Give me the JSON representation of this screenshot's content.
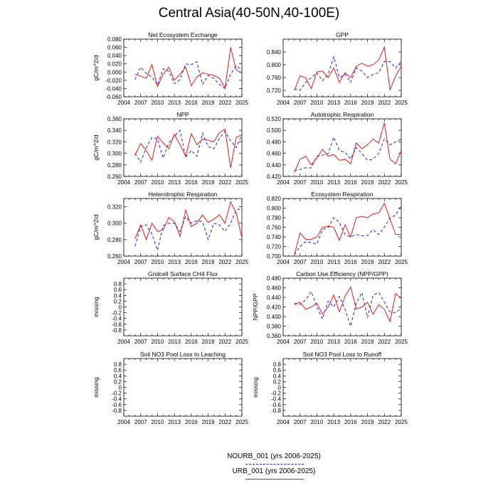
{
  "figure": {
    "title": "Central Asia(40-50N,40-100E)",
    "colors": {
      "nourb": "#1f1fdd",
      "urb": "#e81818"
    }
  },
  "legend": [
    {
      "label": "NOURB_001 (yrs 2006-2025)",
      "color": "#1f1fdd",
      "style": "dashed"
    },
    {
      "label": "URB_001 (yrs 2006-2025)",
      "color": "#e81818",
      "style": "solid"
    }
  ],
  "chart_data": [
    {
      "type": "line",
      "title": "Net Ecosystem Exchange",
      "ylabel": "gC/m^2/d",
      "ylim": [
        -0.06,
        0.08
      ],
      "yticks": [
        "-0.060",
        "-0.040",
        "-0.020",
        "0.000",
        "0.020",
        "0.040",
        "0.060",
        "0.080"
      ],
      "xticks": [
        "2004",
        "2007",
        "2010",
        "2013",
        "2016",
        "2019",
        "2022",
        "2025"
      ],
      "x": [
        2006,
        2007,
        2008,
        2009,
        2010,
        2011,
        2012,
        2013,
        2014,
        2015,
        2016,
        2017,
        2018,
        2019,
        2020,
        2021,
        2022,
        2023,
        2024,
        2025
      ],
      "series": [
        {
          "name": "NOURB_001",
          "values": [
            -0.018,
            0.012,
            -0.003,
            -0.012,
            -0.032,
            0.008,
            0.002,
            -0.028,
            -0.018,
            0.02,
            0.018,
            0.025,
            -0.03,
            -0.008,
            -0.015,
            -0.03,
            -0.04,
            -0.005,
            0.015,
            0.005
          ]
        },
        {
          "name": "URB_001",
          "values": [
            -0.005,
            -0.01,
            -0.015,
            0.018,
            -0.035,
            -0.005,
            0.012,
            -0.02,
            -0.005,
            0.012,
            -0.033,
            -0.012,
            -0.002,
            -0.005,
            -0.008,
            -0.015,
            -0.038,
            0.06,
            0.005,
            -0.002
          ]
        }
      ]
    },
    {
      "type": "line",
      "title": "GPP",
      "ylabel": "",
      "ylim": [
        0.7,
        0.88
      ],
      "yticks": [
        "0.720",
        "0.760",
        "0.800",
        "0.840"
      ],
      "xticks": [
        "2004",
        "2007",
        "2010",
        "2013",
        "2016",
        "2019",
        "2022",
        "2025"
      ],
      "x": [
        2006,
        2007,
        2008,
        2009,
        2010,
        2011,
        2012,
        2013,
        2014,
        2015,
        2016,
        2017,
        2018,
        2019,
        2020,
        2021,
        2022,
        2023,
        2024,
        2025
      ],
      "series": [
        {
          "name": "NOURB_001",
          "values": [
            0.725,
            0.72,
            0.745,
            0.76,
            0.775,
            0.75,
            0.77,
            0.825,
            0.76,
            0.77,
            0.745,
            0.79,
            0.78,
            0.76,
            0.77,
            0.775,
            0.81,
            0.81,
            0.79,
            0.81
          ]
        },
        {
          "name": "URB_001",
          "values": [
            0.72,
            0.765,
            0.76,
            0.725,
            0.778,
            0.78,
            0.76,
            0.79,
            0.745,
            0.775,
            0.76,
            0.795,
            0.805,
            0.795,
            0.8,
            0.815,
            0.855,
            0.722,
            0.765,
            0.795
          ]
        }
      ]
    },
    {
      "type": "line",
      "title": "NPP",
      "ylabel": "gC/m^2/d",
      "ylim": [
        0.26,
        0.36
      ],
      "yticks": [
        "0.260",
        "0.280",
        "0.300",
        "0.320",
        "0.340",
        "0.360"
      ],
      "xticks": [
        "2004",
        "2007",
        "2010",
        "2013",
        "2016",
        "2019",
        "2022",
        "2025"
      ],
      "x": [
        2006,
        2007,
        2008,
        2009,
        2010,
        2011,
        2012,
        2013,
        2014,
        2015,
        2016,
        2017,
        2018,
        2019,
        2020,
        2021,
        2022,
        2023,
        2024,
        2025
      ],
      "series": [
        {
          "name": "NOURB_001",
          "values": [
            0.3,
            0.285,
            0.31,
            0.328,
            0.325,
            0.292,
            0.318,
            0.33,
            0.34,
            0.293,
            0.305,
            0.295,
            0.335,
            0.312,
            0.308,
            0.326,
            0.338,
            0.322,
            0.31,
            0.333
          ]
        },
        {
          "name": "URB_001",
          "values": [
            0.297,
            0.317,
            0.305,
            0.288,
            0.33,
            0.318,
            0.308,
            0.333,
            0.315,
            0.295,
            0.334,
            0.315,
            0.325,
            0.323,
            0.32,
            0.336,
            0.342,
            0.275,
            0.328,
            0.332
          ]
        }
      ]
    },
    {
      "type": "line",
      "title": "Autotrophic Respiration",
      "ylabel": "",
      "ylim": [
        0.42,
        0.52
      ],
      "yticks": [
        "0.420",
        "0.440",
        "0.460",
        "0.480",
        "0.500",
        "0.520"
      ],
      "xticks": [
        "2004",
        "2007",
        "2010",
        "2013",
        "2016",
        "2019",
        "2022",
        "2025"
      ],
      "x": [
        2006,
        2007,
        2008,
        2009,
        2010,
        2011,
        2012,
        2013,
        2014,
        2015,
        2016,
        2017,
        2018,
        2019,
        2020,
        2021,
        2022,
        2023,
        2024,
        2025
      ],
      "series": [
        {
          "name": "NOURB_001",
          "values": [
            0.43,
            0.432,
            0.435,
            0.435,
            0.455,
            0.457,
            0.46,
            0.488,
            0.465,
            0.462,
            0.45,
            0.47,
            0.46,
            0.448,
            0.45,
            0.46,
            0.485,
            0.475,
            0.48,
            0.485
          ]
        },
        {
          "name": "URB_001",
          "values": [
            0.427,
            0.45,
            0.455,
            0.44,
            0.452,
            0.467,
            0.455,
            0.458,
            0.448,
            0.45,
            0.442,
            0.478,
            0.468,
            0.475,
            0.485,
            0.478,
            0.513,
            0.45,
            0.442,
            0.465
          ]
        }
      ]
    },
    {
      "type": "line",
      "title": "Heterotrophic Respiration",
      "ylabel": "gC/m^2/d",
      "ylim": [
        0.26,
        0.33
      ],
      "yticks": [
        "0.260",
        "0.280",
        "0.300",
        "0.320"
      ],
      "xticks": [
        "2004",
        "2007",
        "2010",
        "2013",
        "2016",
        "2019",
        "2022",
        "2025"
      ],
      "x": [
        2006,
        2007,
        2008,
        2009,
        2010,
        2011,
        2012,
        2013,
        2014,
        2015,
        2016,
        2017,
        2018,
        2019,
        2020,
        2021,
        2022,
        2023,
        2024,
        2025
      ],
      "series": [
        {
          "name": "NOURB_001",
          "values": [
            0.272,
            0.296,
            0.298,
            0.287,
            0.267,
            0.297,
            0.3,
            0.3,
            0.29,
            0.308,
            0.3,
            0.303,
            0.302,
            0.28,
            0.3,
            0.298,
            0.29,
            0.3,
            0.316,
            0.318
          ]
        },
        {
          "name": "URB_001",
          "values": [
            0.281,
            0.298,
            0.28,
            0.3,
            0.29,
            0.292,
            0.307,
            0.302,
            0.284,
            0.316,
            0.296,
            0.3,
            0.31,
            0.301,
            0.305,
            0.31,
            0.3,
            0.326,
            0.312,
            0.282
          ]
        }
      ]
    },
    {
      "type": "line",
      "title": "Ecosystem Respiration",
      "ylabel": "",
      "ylim": [
        0.7,
        0.82
      ],
      "yticks": [
        "0.700",
        "0.720",
        "0.740",
        "0.760",
        "0.780",
        "0.800",
        "0.820"
      ],
      "xticks": [
        "2004",
        "2007",
        "2010",
        "2013",
        "2016",
        "2019",
        "2022",
        "2025"
      ],
      "x": [
        2006,
        2007,
        2008,
        2009,
        2010,
        2011,
        2012,
        2013,
        2014,
        2015,
        2016,
        2017,
        2018,
        2019,
        2020,
        2021,
        2022,
        2023,
        2024,
        2025
      ],
      "series": [
        {
          "name": "NOURB_001",
          "values": [
            0.703,
            0.72,
            0.73,
            0.728,
            0.725,
            0.755,
            0.76,
            0.78,
            0.77,
            0.745,
            0.74,
            0.745,
            0.742,
            0.743,
            0.755,
            0.745,
            0.76,
            0.78,
            0.785,
            0.805
          ]
        },
        {
          "name": "URB_001",
          "values": [
            0.703,
            0.748,
            0.735,
            0.735,
            0.74,
            0.76,
            0.762,
            0.76,
            0.733,
            0.765,
            0.74,
            0.78,
            0.783,
            0.78,
            0.788,
            0.79,
            0.81,
            0.777,
            0.745,
            0.745
          ]
        }
      ]
    },
    {
      "type": "line",
      "title": "Gridcell Surface CH4 Flux",
      "ylabel": "missing",
      "ylim": [
        -1.0,
        1.0
      ],
      "yticks": [
        "-0.8",
        "-0.6",
        "-0.4",
        "-0.2",
        "0",
        "0.2",
        "0.4",
        "0.6",
        "0.8"
      ],
      "xticks": [
        "2004",
        "2007",
        "2010",
        "2013",
        "2016",
        "2019",
        "2022",
        "2025"
      ],
      "x": [],
      "series": []
    },
    {
      "type": "line",
      "title": "Carbon Use Efficiency (NPP/GPP)",
      "ylabel": "NPP/GPP",
      "ylim": [
        0.36,
        0.48
      ],
      "yticks": [
        "0.360",
        "0.380",
        "0.400",
        "0.420",
        "0.440",
        "0.460",
        "0.480"
      ],
      "xticks": [
        "2004",
        "2007",
        "2010",
        "2013",
        "2016",
        "2019",
        "2022",
        "2025"
      ],
      "x": [
        2006,
        2007,
        2008,
        2009,
        2010,
        2011,
        2012,
        2013,
        2014,
        2015,
        2016,
        2017,
        2018,
        2019,
        2020,
        2021,
        2022,
        2023,
        2024,
        2025
      ],
      "series": [
        {
          "name": "NOURB_001",
          "values": [
            0.428,
            0.425,
            0.435,
            0.452,
            0.42,
            0.395,
            0.432,
            0.42,
            0.442,
            0.415,
            0.38,
            0.428,
            0.45,
            0.398,
            0.445,
            0.45,
            0.43,
            0.41,
            0.408,
            0.418
          ]
        },
        {
          "name": "URB_001",
          "values": [
            0.425,
            0.43,
            0.415,
            0.42,
            0.428,
            0.405,
            0.42,
            0.445,
            0.41,
            0.442,
            0.462,
            0.416,
            0.42,
            0.43,
            0.405,
            0.425,
            0.415,
            0.39,
            0.448,
            0.438
          ]
        }
      ]
    },
    {
      "type": "line",
      "title": "Soil NO3 Pool Loss to Leaching",
      "ylabel": "missing",
      "ylim": [
        -1.0,
        1.0
      ],
      "yticks": [
        "-0.8",
        "-0.6",
        "-0.4",
        "-0.2",
        "0",
        "0.2",
        "0.4",
        "0.6",
        "0.8"
      ],
      "xticks": [
        "2004",
        "2007",
        "2010",
        "2013",
        "2016",
        "2019",
        "2022",
        "2025"
      ],
      "x": [],
      "series": []
    },
    {
      "type": "line",
      "title": "Soil NO3 Pool Loss to Runoff",
      "ylabel": "missing",
      "ylim": [
        -1.0,
        1.0
      ],
      "yticks": [
        "-0.8",
        "-0.6",
        "-0.4",
        "-0.2",
        "0",
        "0.2",
        "0.4",
        "0.6",
        "0.8"
      ],
      "xticks": [
        "2004",
        "2007",
        "2010",
        "2013",
        "2016",
        "2019",
        "2022",
        "2025"
      ],
      "x": [],
      "series": []
    }
  ]
}
